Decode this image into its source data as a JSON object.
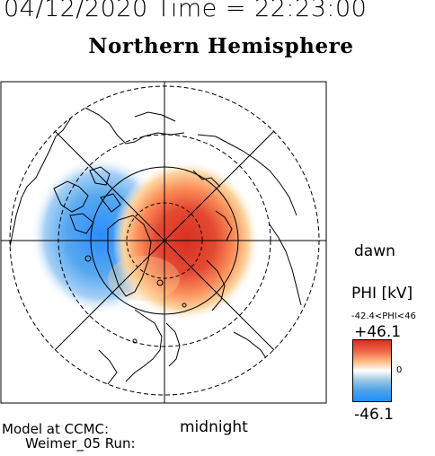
{
  "header": {
    "datetime": "04/12/2020 Time = 22:23:00",
    "title": "Northern Hemisphere"
  },
  "map": {
    "label_dawn": "dawn",
    "label_midnight": "midnight",
    "colors": {
      "positive": "#d7301f",
      "negative": "#1e90ff",
      "neutral": "#ffffff",
      "coastline": "#000000"
    }
  },
  "footer": {
    "model_line1": "Model at CCMC:",
    "model_line2": "Weimer_05 Run:"
  },
  "colorbar": {
    "title": "PHI [kV]",
    "range_text": "-42.4<PHI<46",
    "max_label": "+46.1",
    "zero_label": "0",
    "min_label": "-46.1",
    "max": 46.1,
    "min": -46.1
  }
}
